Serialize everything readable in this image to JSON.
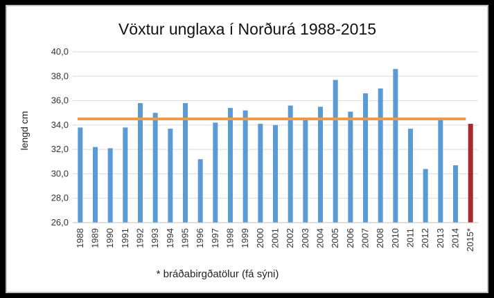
{
  "chart_data": {
    "type": "bar",
    "title": "Vöxtur unglaxa í Norðurá 1988-2015",
    "ylabel": "lengd cm",
    "xlabel": "* bráðabirgðatölur (fá sýni)",
    "ylim": [
      26.0,
      40.0
    ],
    "yticks": [
      "26,0",
      "28,0",
      "30,0",
      "32,0",
      "34,0",
      "36,0",
      "38,0",
      "40,0"
    ],
    "grid": true,
    "categories": [
      "1988",
      "1989",
      "1990",
      "1991",
      "1992",
      "1993",
      "1994",
      "1995",
      "1996",
      "1997",
      "1998",
      "1999",
      "2000",
      "2001",
      "2002",
      "2003",
      "2004",
      "2005",
      "2006",
      "2007",
      "2008",
      "2010",
      "2011",
      "2012",
      "2013",
      "2014",
      "2015*"
    ],
    "values": [
      33.8,
      32.2,
      32.1,
      33.8,
      35.8,
      35.0,
      33.7,
      35.8,
      31.2,
      34.2,
      35.4,
      35.2,
      34.1,
      34.0,
      35.6,
      34.4,
      35.5,
      37.7,
      35.1,
      36.6,
      37.0,
      38.6,
      33.7,
      30.4,
      34.4,
      30.7,
      34.1
    ],
    "average_line": 34.5,
    "colors": {
      "bar": "#5b9bd5",
      "highlight_bar": "#a52a2a",
      "average_line": "#ed9a4b",
      "grid": "#d9d9d9"
    },
    "highlight_index": 26
  }
}
